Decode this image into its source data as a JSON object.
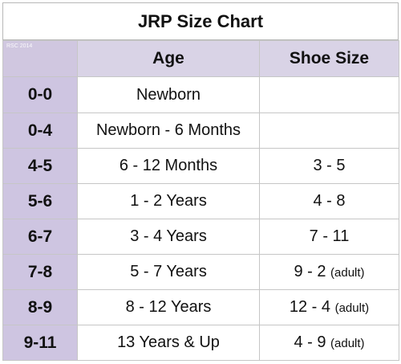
{
  "title": "JRP Size Chart",
  "watermark": "RSC 2014",
  "headers": {
    "age": "Age",
    "shoe": "Shoe Size"
  },
  "rows": [
    {
      "size": "0-0",
      "age": "Newborn",
      "shoe": "",
      "shoe_note": ""
    },
    {
      "size": "0-4",
      "age": "Newborn - 6 Months",
      "shoe": "",
      "shoe_note": ""
    },
    {
      "size": "4-5",
      "age": "6 - 12 Months",
      "shoe": "3 - 5",
      "shoe_note": ""
    },
    {
      "size": "5-6",
      "age": "1 - 2 Years",
      "shoe": "4 - 8",
      "shoe_note": ""
    },
    {
      "size": "6-7",
      "age": "3 - 4 Years",
      "shoe": "7 - 11",
      "shoe_note": ""
    },
    {
      "size": "7-8",
      "age": "5 - 7 Years",
      "shoe": "9 - 2",
      "shoe_note": "(adult)"
    },
    {
      "size": "8-9",
      "age": "8 - 12 Years",
      "shoe": "12 - 4",
      "shoe_note": "(adult)"
    },
    {
      "size": "9-11",
      "age": "13 Years & Up",
      "shoe": "4 - 9",
      "shoe_note": "(adult)"
    }
  ],
  "colors": {
    "header_bg": "#d9d3e6",
    "size_col_bg": "#cec5e1",
    "border": "#c6c6c6"
  }
}
